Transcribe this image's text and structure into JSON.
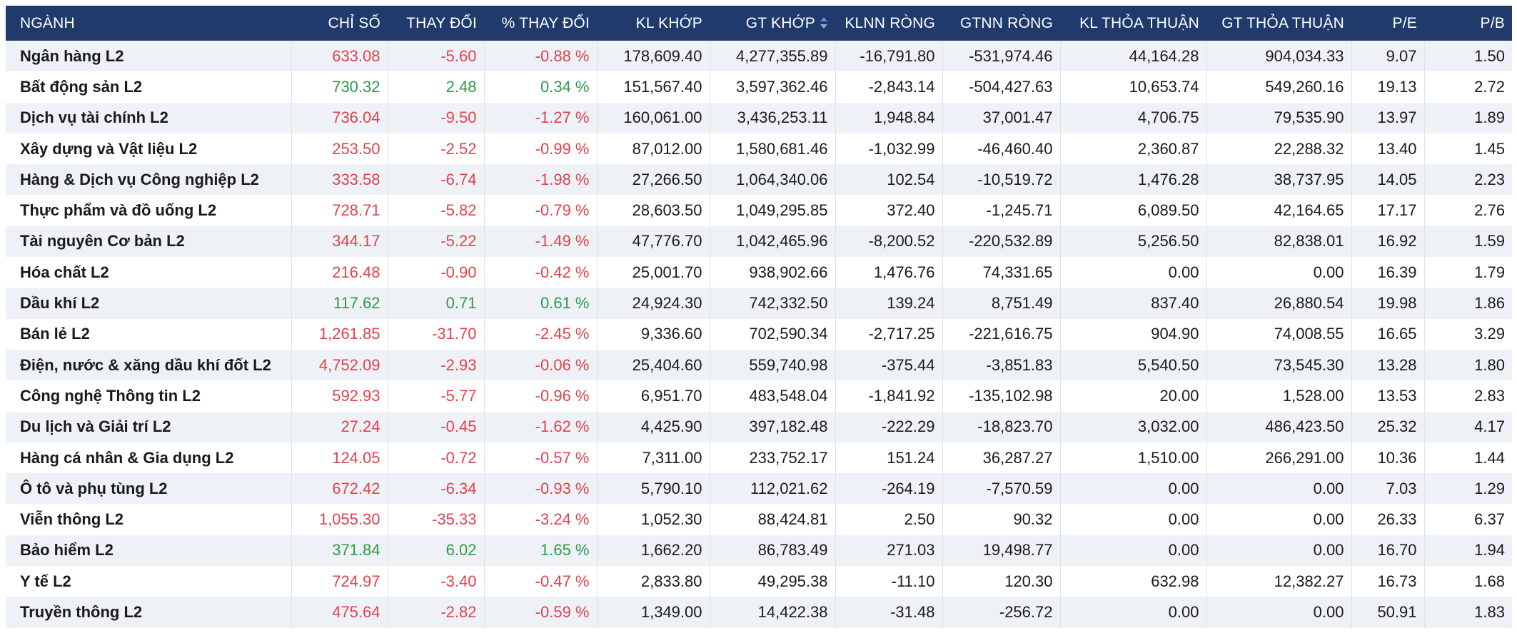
{
  "colors": {
    "header_bg": "#1f3a6b",
    "header_text": "#ffffff",
    "row_alt": "#eef1f6",
    "up": "#2e9a47",
    "down": "#e0434d",
    "sort_active": "#5b8def"
  },
  "table": {
    "sort_column": "GT KHỚP",
    "sort_icon": "sort-up-down-icon",
    "headers": [
      "NGÀNH",
      "CHỈ SỐ",
      "THAY ĐỔI",
      "% THAY ĐỔI",
      "KL KHỚP",
      "GT KHỚP",
      "KLNN RÒNG",
      "GTNN RÒNG",
      "KL THỎA THUẬN",
      "GT THỎA THUẬN",
      "P/E",
      "P/B"
    ],
    "rows": [
      {
        "name": "Ngân hàng L2",
        "trend": "down",
        "cells": [
          "633.08",
          "-5.60",
          "-0.88 %",
          "178,609.40",
          "4,277,355.89",
          "-16,791.80",
          "-531,974.46",
          "44,164.28",
          "904,034.33",
          "9.07",
          "1.50"
        ]
      },
      {
        "name": "Bất động sản L2",
        "trend": "up",
        "cells": [
          "730.32",
          "2.48",
          "0.34 %",
          "151,567.40",
          "3,597,362.46",
          "-2,843.14",
          "-504,427.63",
          "10,653.74",
          "549,260.16",
          "19.13",
          "2.72"
        ]
      },
      {
        "name": "Dịch vụ tài chính L2",
        "trend": "down",
        "cells": [
          "736.04",
          "-9.50",
          "-1.27 %",
          "160,061.00",
          "3,436,253.11",
          "1,948.84",
          "37,001.47",
          "4,706.75",
          "79,535.90",
          "13.97",
          "1.89"
        ]
      },
      {
        "name": "Xây dựng và Vật liệu L2",
        "trend": "down",
        "cells": [
          "253.50",
          "-2.52",
          "-0.99 %",
          "87,012.00",
          "1,580,681.46",
          "-1,032.99",
          "-46,460.40",
          "2,360.87",
          "22,288.32",
          "13.40",
          "1.45"
        ]
      },
      {
        "name": "Hàng & Dịch vụ Công nghiệp L2",
        "trend": "down",
        "cells": [
          "333.58",
          "-6.74",
          "-1.98 %",
          "27,266.50",
          "1,064,340.06",
          "102.54",
          "-10,519.72",
          "1,476.28",
          "38,737.95",
          "14.05",
          "2.23"
        ]
      },
      {
        "name": "Thực phẩm và đồ uống L2",
        "trend": "down",
        "cells": [
          "728.71",
          "-5.82",
          "-0.79 %",
          "28,603.50",
          "1,049,295.85",
          "372.40",
          "-1,245.71",
          "6,089.50",
          "42,164.65",
          "17.17",
          "2.76"
        ]
      },
      {
        "name": "Tài nguyên Cơ bản L2",
        "trend": "down",
        "cells": [
          "344.17",
          "-5.22",
          "-1.49 %",
          "47,776.70",
          "1,042,465.96",
          "-8,200.52",
          "-220,532.89",
          "5,256.50",
          "82,838.01",
          "16.92",
          "1.59"
        ]
      },
      {
        "name": "Hóa chất L2",
        "trend": "down",
        "cells": [
          "216.48",
          "-0.90",
          "-0.42 %",
          "25,001.70",
          "938,902.66",
          "1,476.76",
          "74,331.65",
          "0.00",
          "0.00",
          "16.39",
          "1.79"
        ]
      },
      {
        "name": "Dầu khí L2",
        "trend": "up",
        "cells": [
          "117.62",
          "0.71",
          "0.61 %",
          "24,924.30",
          "742,332.50",
          "139.24",
          "8,751.49",
          "837.40",
          "26,880.54",
          "19.98",
          "1.86"
        ]
      },
      {
        "name": "Bán lẻ L2",
        "trend": "down",
        "cells": [
          "1,261.85",
          "-31.70",
          "-2.45 %",
          "9,336.60",
          "702,590.34",
          "-2,717.25",
          "-221,616.75",
          "904.90",
          "74,008.55",
          "16.65",
          "3.29"
        ]
      },
      {
        "name": "Điện, nước & xăng dầu khí đốt L2",
        "trend": "down",
        "cells": [
          "4,752.09",
          "-2.93",
          "-0.06 %",
          "25,404.60",
          "559,740.98",
          "-375.44",
          "-3,851.83",
          "5,540.50",
          "73,545.30",
          "13.28",
          "1.80"
        ]
      },
      {
        "name": "Công nghệ Thông tin L2",
        "trend": "down",
        "cells": [
          "592.93",
          "-5.77",
          "-0.96 %",
          "6,951.70",
          "483,548.04",
          "-1,841.92",
          "-135,102.98",
          "20.00",
          "1,528.00",
          "13.53",
          "2.83"
        ]
      },
      {
        "name": "Du lịch và Giải trí L2",
        "trend": "down",
        "cells": [
          "27.24",
          "-0.45",
          "-1.62 %",
          "4,425.90",
          "397,182.48",
          "-222.29",
          "-18,823.70",
          "3,032.00",
          "486,423.50",
          "25.32",
          "4.17"
        ]
      },
      {
        "name": "Hàng cá nhân & Gia dụng L2",
        "trend": "down",
        "cells": [
          "124.05",
          "-0.72",
          "-0.57 %",
          "7,311.00",
          "233,752.17",
          "151.24",
          "36,287.27",
          "1,510.00",
          "266,291.00",
          "10.36",
          "1.44"
        ]
      },
      {
        "name": "Ô tô và phụ tùng L2",
        "trend": "down",
        "cells": [
          "672.42",
          "-6.34",
          "-0.93 %",
          "5,790.10",
          "112,021.62",
          "-264.19",
          "-7,570.59",
          "0.00",
          "0.00",
          "7.03",
          "1.29"
        ]
      },
      {
        "name": "Viễn thông L2",
        "trend": "down",
        "cells": [
          "1,055.30",
          "-35.33",
          "-3.24 %",
          "1,052.30",
          "88,424.81",
          "2.50",
          "90.32",
          "0.00",
          "0.00",
          "26.33",
          "6.37"
        ]
      },
      {
        "name": "Bảo hiểm L2",
        "trend": "up",
        "cells": [
          "371.84",
          "6.02",
          "1.65 %",
          "1,662.20",
          "86,783.49",
          "271.03",
          "19,498.77",
          "0.00",
          "0.00",
          "16.70",
          "1.94"
        ]
      },
      {
        "name": "Y tế L2",
        "trend": "down",
        "cells": [
          "724.97",
          "-3.40",
          "-0.47 %",
          "2,833.80",
          "49,295.38",
          "-11.10",
          "120.30",
          "632.98",
          "12,382.27",
          "16.73",
          "1.68"
        ]
      },
      {
        "name": "Truyền thông L2",
        "trend": "down",
        "cells": [
          "475.64",
          "-2.82",
          "-0.59 %",
          "1,349.00",
          "14,422.38",
          "-31.48",
          "-256.72",
          "0.00",
          "0.00",
          "50.91",
          "1.83"
        ]
      }
    ]
  }
}
